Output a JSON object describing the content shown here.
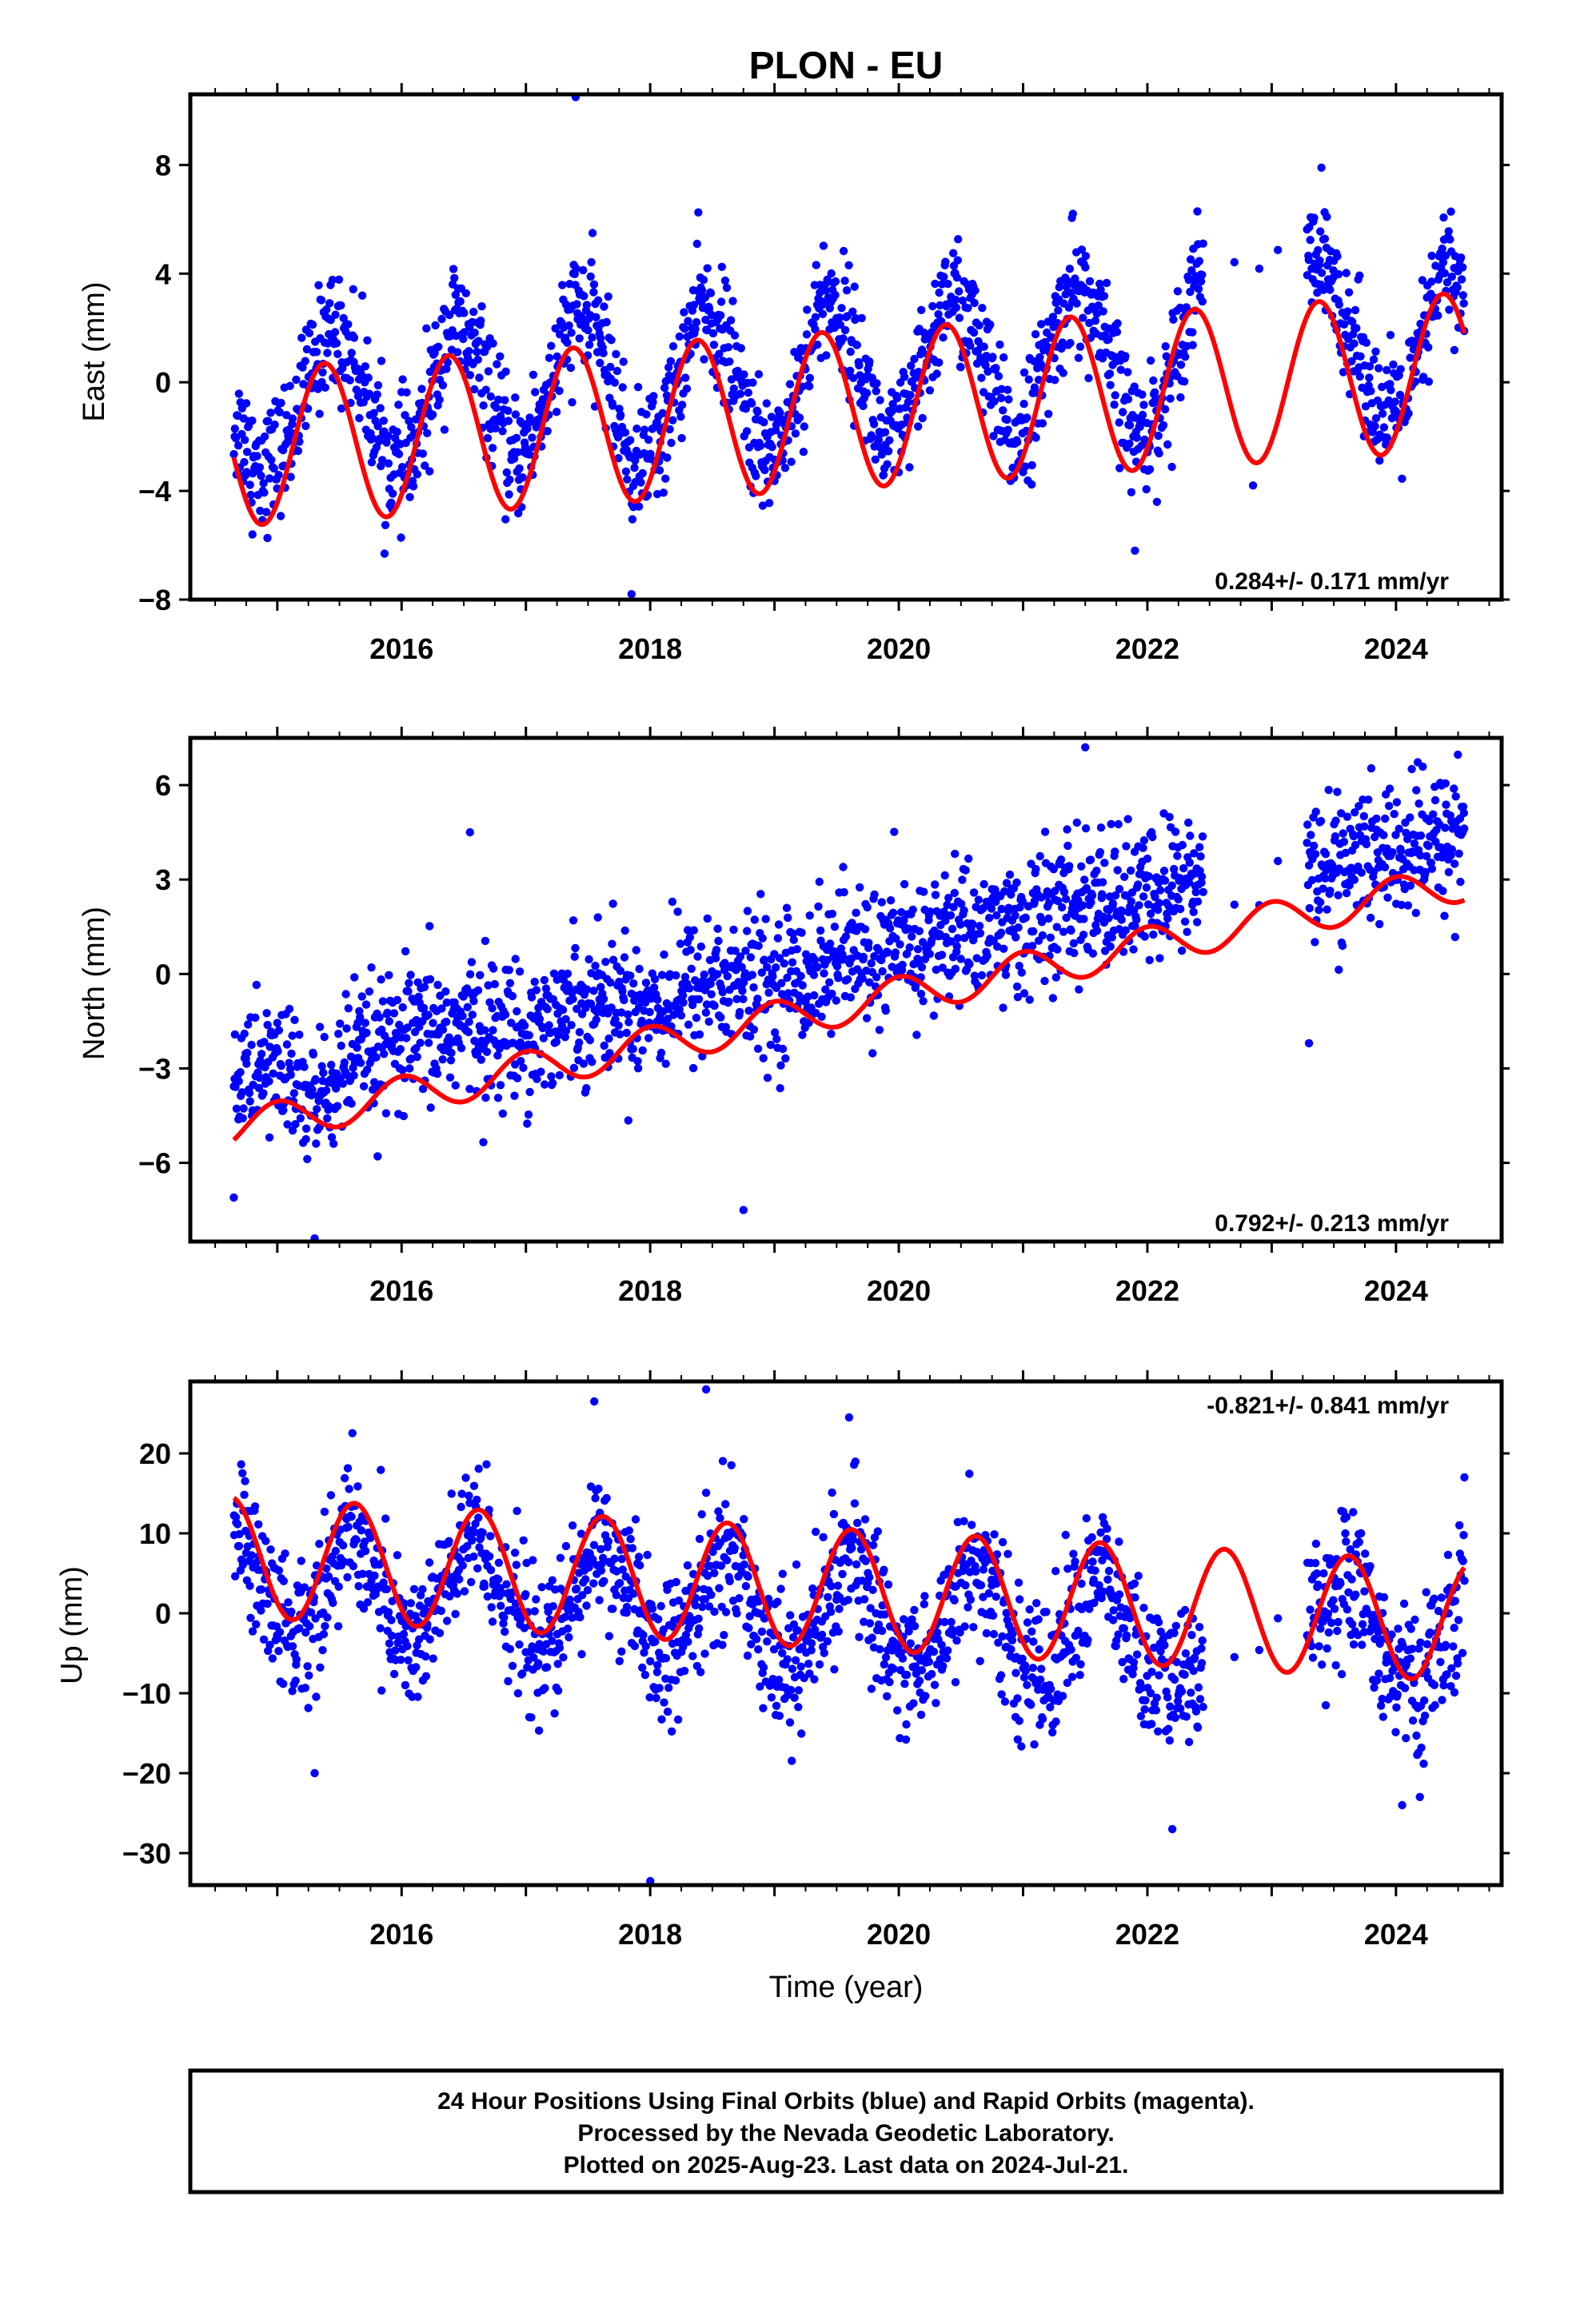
{
  "title": "PLON - EU",
  "colors": {
    "points": "#0000ff",
    "fit": "#ff0000",
    "frame": "#000000"
  },
  "chart_data": [
    {
      "type": "scatter",
      "ylabel": "East (mm)",
      "xlim": [
        2014.3,
        2024.85
      ],
      "ylim": [
        -8,
        10.6
      ],
      "yticks": [
        -8,
        -4,
        0,
        4,
        8
      ],
      "ytick_labels": [
        "−8",
        "−4",
        "0",
        "4",
        "8"
      ],
      "xticks": [
        2016,
        2018,
        2020,
        2022,
        2024
      ],
      "xtick_labels": [
        "2016",
        "2018",
        "2020",
        "2022",
        "2024"
      ],
      "rate_text": "0.284+/- 0.171 mm/yr",
      "rate_pos": "bottom-right",
      "marker_color": "#0000ff",
      "fit_color": "#ff0000",
      "fit": {
        "offset": -1.0,
        "trend": 0.284,
        "amplitude": 2.9,
        "phase_year": 2015.38,
        "period": 1.0
      },
      "series": [
        {
          "x": [
            2014.65,
            2014.9,
            2015.1,
            2015.4,
            2015.6,
            2015.9,
            2016.1,
            2016.4,
            2016.6,
            2016.9,
            2017.1,
            2017.4,
            2017.6,
            2017.85,
            2018.1,
            2018.4,
            2018.6,
            2018.9,
            2019.1,
            2019.4,
            2019.6,
            2019.9,
            2020.1,
            2020.4,
            2020.6,
            2020.9,
            2021.1,
            2021.4,
            2021.6,
            2021.9,
            2022.1,
            2022.4,
            2023.4,
            2023.6,
            2023.9,
            2024.1,
            2024.4,
            2024.55
          ],
          "y": [
            -1.5,
            -3.2,
            -2.0,
            2.1,
            1.2,
            -3.0,
            -2.8,
            2.4,
            1.0,
            -3.1,
            -1.5,
            2.8,
            1.8,
            -3.2,
            -1.9,
            3.0,
            1.5,
            -2.9,
            -1.6,
            3.3,
            1.9,
            -2.7,
            -1.0,
            3.5,
            2.0,
            -2.4,
            -0.6,
            3.8,
            2.2,
            -2.0,
            -1.2,
            4.2,
            4.3,
            2.5,
            -1.5,
            -0.6,
            4.6,
            3.0
          ]
        }
      ],
      "outliers": [
        {
          "x": 2017.4,
          "y": 10.5
        },
        {
          "x": 2017.85,
          "y": -7.8
        },
        {
          "x": 2014.8,
          "y": -5.6
        },
        {
          "x": 2021.9,
          "y": -6.2
        },
        {
          "x": 2023.4,
          "y": 7.9
        },
        {
          "x": 2022.85,
          "y": -3.8
        }
      ],
      "generator": {
        "noise": 1.1,
        "gaps": [
          [
            2022.45,
            2023.28
          ]
        ],
        "sparse": [
          2022.7,
          2022.9,
          2023.05
        ]
      }
    },
    {
      "type": "scatter",
      "ylabel": "North (mm)",
      "xlim": [
        2014.3,
        2024.85
      ],
      "ylim": [
        -8.5,
        7.5
      ],
      "yticks": [
        -6,
        -3,
        0,
        3,
        6
      ],
      "ytick_labels": [
        "−6",
        "−3",
        "0",
        "3",
        "6"
      ],
      "xticks": [
        2016,
        2018,
        2020,
        2022,
        2024
      ],
      "xtick_labels": [
        "2016",
        "2018",
        "2020",
        "2022",
        "2024"
      ],
      "rate_text": "0.792+/- 0.213 mm/yr",
      "rate_pos": "bottom-right",
      "marker_color": "#0000ff",
      "fit_color": "#ff0000",
      "fit": {
        "offset": -1.0,
        "trend": 0.792,
        "amplitude": 0.6,
        "phase_year": 2015.0,
        "period": 1.0
      },
      "series": [
        {
          "x": [
            2014.65,
            2015.0,
            2015.3,
            2015.6,
            2016.0,
            2016.5,
            2017.0,
            2017.5,
            2018.0,
            2018.5,
            2019.0,
            2019.5,
            2020.0,
            2020.5,
            2021.0,
            2021.5,
            2022.0,
            2022.4,
            2023.4,
            2023.8,
            2024.2,
            2024.55
          ],
          "y": [
            -3.4,
            -2.8,
            -4.2,
            -2.8,
            -2.2,
            -1.6,
            -1.9,
            -0.8,
            -1.0,
            -0.2,
            -0.4,
            0.5,
            0.6,
            1.4,
            1.5,
            2.3,
            2.4,
            3.1,
            3.3,
            3.8,
            3.9,
            4.8
          ]
        }
      ],
      "outliers": [
        {
          "x": 2016.55,
          "y": 4.5
        },
        {
          "x": 2018.75,
          "y": -7.5
        },
        {
          "x": 2015.3,
          "y": -8.4
        },
        {
          "x": 2021.5,
          "y": 7.2
        },
        {
          "x": 2014.65,
          "y": -7.1
        },
        {
          "x": 2023.3,
          "y": -2.2
        }
      ],
      "generator": {
        "noise": 1.1,
        "gaps": [
          [
            2022.45,
            2023.28
          ]
        ],
        "sparse": [
          2022.7,
          2022.9,
          2023.05
        ]
      }
    },
    {
      "type": "scatter",
      "ylabel": "Up (mm)",
      "xlabel": "Time (year)",
      "xlim": [
        2014.3,
        2024.85
      ],
      "ylim": [
        -34,
        29
      ],
      "yticks": [
        -30,
        -20,
        -10,
        0,
        10,
        20
      ],
      "ytick_labels": [
        "−30",
        "−20",
        "−10",
        "0",
        "10",
        "20"
      ],
      "xticks": [
        2016,
        2018,
        2020,
        2022,
        2024
      ],
      "xtick_labels": [
        "2016",
        "2018",
        "2020",
        "2022",
        "2024"
      ],
      "rate_text": "-0.821+/- 0.841 mm/yr",
      "rate_pos": "top-right",
      "marker_color": "#0000ff",
      "fit_color": "#ff0000",
      "fit": {
        "offset": 3.0,
        "trend": -0.821,
        "amplitude": 7.5,
        "phase_year": 2014.62,
        "period": 1.0
      },
      "series": [
        {
          "x": [
            2014.65,
            2015.0,
            2015.2,
            2015.6,
            2016.0,
            2016.1,
            2016.6,
            2017.0,
            2017.2,
            2017.6,
            2018.0,
            2018.2,
            2018.6,
            2019.0,
            2019.2,
            2019.6,
            2020.0,
            2020.2,
            2020.6,
            2021.0,
            2021.2,
            2021.6,
            2022.0,
            2022.2,
            2023.4,
            2023.6,
            2024.0,
            2024.2,
            2024.55
          ],
          "y": [
            12.0,
            0.0,
            -3.0,
            11.5,
            -3.0,
            -4.0,
            10.5,
            -3.0,
            -5.0,
            10.0,
            -4.0,
            -5.5,
            9.0,
            -5.0,
            -6.5,
            8.5,
            -6.0,
            -7.0,
            7.5,
            -7.0,
            -8.0,
            6.5,
            -8.0,
            -9.0,
            1.0,
            5.0,
            -7.0,
            -10.0,
            2.5
          ]
        }
      ],
      "outliers": [
        {
          "x": 2018.45,
          "y": 28.0
        },
        {
          "x": 2018.0,
          "y": -33.5
        },
        {
          "x": 2017.55,
          "y": 26.5
        },
        {
          "x": 2019.6,
          "y": 24.5
        },
        {
          "x": 2022.2,
          "y": -27.0
        },
        {
          "x": 2015.3,
          "y": -20.0
        },
        {
          "x": 2024.55,
          "y": 17.0
        },
        {
          "x": 2024.05,
          "y": -24.0
        }
      ],
      "generator": {
        "noise": 4.5,
        "gaps": [
          [
            2022.45,
            2023.28
          ]
        ],
        "sparse": [
          2022.7,
          2022.9,
          2023.05
        ]
      }
    }
  ],
  "footer": {
    "lines": [
      "24 Hour Positions Using Final Orbits (blue) and Rapid Orbits (magenta).",
      "Processed by the Nevada Geodetic Laboratory.",
      "Plotted on 2025-Aug-23. Last data on 2024-Jul-21."
    ]
  }
}
